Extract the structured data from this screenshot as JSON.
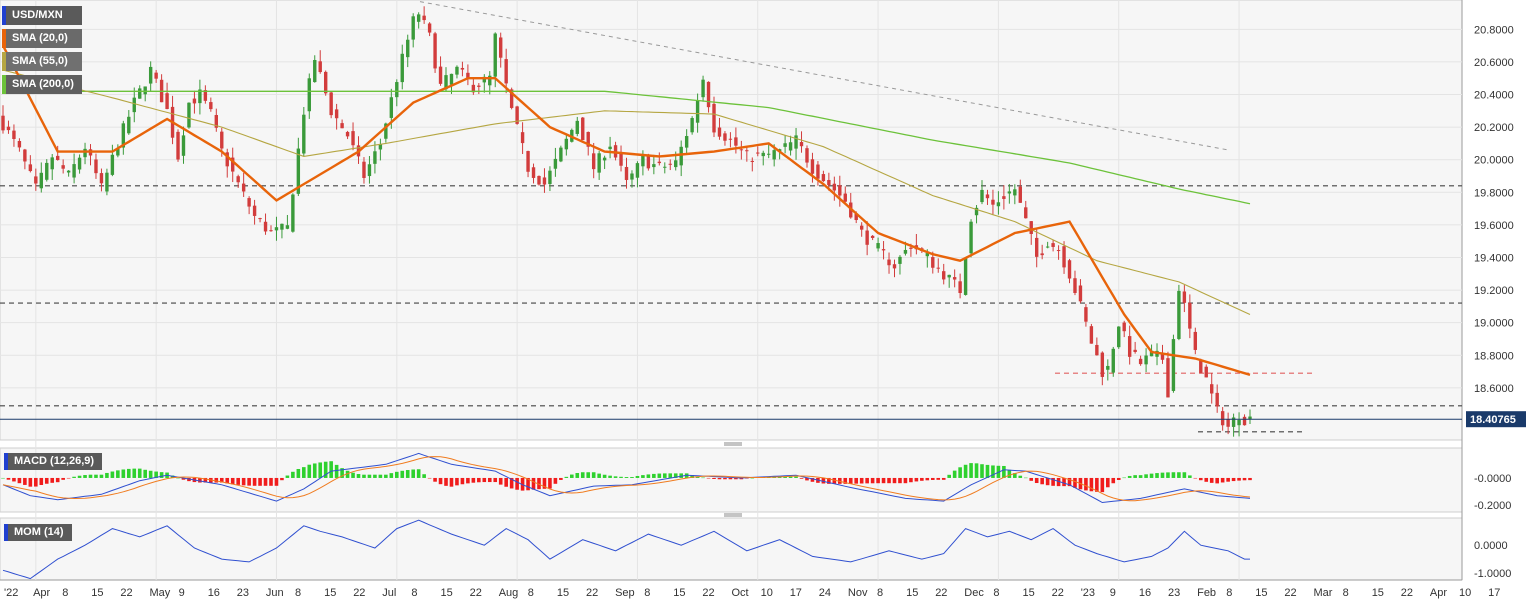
{
  "legend": {
    "symbol": "USD/MXN",
    "indicators": [
      {
        "label": "SMA (20,0)",
        "color": "#e8640a"
      },
      {
        "label": "SMA (55,0)",
        "color": "#b5a642"
      },
      {
        "label": "SMA (200,0)",
        "color": "#6cc23a"
      }
    ]
  },
  "colors": {
    "bull": "#3a9a3a",
    "bear": "#d23c3c",
    "macd": "#3050d0",
    "signal": "#f07c20",
    "mom": "#3050d0",
    "last_price_bg": "#1a3a6a"
  },
  "chart_data": [
    {
      "type": "candlestick",
      "title": "USD/MXN",
      "last_price": "18.40765",
      "ylim": [
        18.28,
        20.98
      ],
      "y_ticks": [
        "20.8000",
        "20.6000",
        "20.4000",
        "20.2000",
        "20.0000",
        "19.8000",
        "19.6000",
        "19.4000",
        "19.2000",
        "19.0000",
        "18.8000",
        "18.6000"
      ],
      "x_ticks": [
        "'22",
        "Apr",
        "8",
        "15",
        "22",
        "May",
        "9",
        "16",
        "23",
        "Jun",
        "8",
        "15",
        "22",
        "Jul",
        "8",
        "15",
        "22",
        "Aug",
        "8",
        "15",
        "22",
        "Sep",
        "8",
        "15",
        "22",
        "Oct",
        "10",
        "17",
        "24",
        "Nov",
        "8",
        "15",
        "22",
        "Dec",
        "8",
        "15",
        "22",
        "'23",
        "9",
        "16",
        "23",
        "Feb",
        "8",
        "15",
        "22",
        "Mar",
        "8",
        "15",
        "22",
        "Apr",
        "10",
        "17"
      ],
      "horizontal_levels": [
        19.84,
        19.12,
        18.49,
        18.69,
        18.33
      ],
      "trendline": [
        [
          20.97
        ],
        [
          20.06
        ]
      ],
      "waypoints": [
        [
          0,
          20.22
        ],
        [
          3,
          20.05
        ],
        [
          6,
          19.82
        ],
        [
          9,
          20.02
        ],
        [
          12,
          19.9
        ],
        [
          15,
          20.08
        ],
        [
          18,
          19.82
        ],
        [
          21,
          20.1
        ],
        [
          24,
          20.35
        ],
        [
          27,
          20.55
        ],
        [
          30,
          20.3
        ],
        [
          32,
          20.02
        ],
        [
          34,
          20.35
        ],
        [
          36,
          20.4
        ],
        [
          38,
          20.28
        ],
        [
          40,
          20.05
        ],
        [
          43,
          19.85
        ],
        [
          46,
          19.65
        ],
        [
          49,
          19.55
        ],
        [
          52,
          19.58
        ],
        [
          55,
          20.3
        ],
        [
          57,
          20.62
        ],
        [
          60,
          20.3
        ],
        [
          63,
          20.15
        ],
        [
          66,
          19.9
        ],
        [
          69,
          20.1
        ],
        [
          72,
          20.5
        ],
        [
          75,
          20.85
        ],
        [
          76,
          20.9
        ],
        [
          78,
          20.75
        ],
        [
          80,
          20.45
        ],
        [
          83,
          20.55
        ],
        [
          86,
          20.45
        ],
        [
          89,
          20.5
        ],
        [
          90,
          20.75
        ],
        [
          93,
          20.3
        ],
        [
          96,
          19.95
        ],
        [
          99,
          19.85
        ],
        [
          102,
          20.05
        ],
        [
          105,
          20.25
        ],
        [
          108,
          19.95
        ],
        [
          111,
          20.1
        ],
        [
          114,
          19.85
        ],
        [
          117,
          20.0
        ],
        [
          120,
          19.95
        ],
        [
          123,
          19.98
        ],
        [
          126,
          20.25
        ],
        [
          128,
          20.5
        ],
        [
          130,
          20.2
        ],
        [
          133,
          20.12
        ],
        [
          136,
          20.02
        ],
        [
          139,
          20.02
        ],
        [
          142,
          20.05
        ],
        [
          145,
          20.12
        ],
        [
          148,
          19.95
        ],
        [
          151,
          19.85
        ],
        [
          154,
          19.75
        ],
        [
          157,
          19.55
        ],
        [
          160,
          19.45
        ],
        [
          163,
          19.35
        ],
        [
          166,
          19.48
        ],
        [
          169,
          19.4
        ],
        [
          172,
          19.3
        ],
        [
          175,
          19.2
        ],
        [
          177,
          19.65
        ],
        [
          179,
          19.8
        ],
        [
          181,
          19.72
        ],
        [
          183,
          19.78
        ],
        [
          185,
          19.82
        ],
        [
          187,
          19.62
        ],
        [
          189,
          19.4
        ],
        [
          191,
          19.5
        ],
        [
          193,
          19.45
        ],
        [
          195,
          19.3
        ],
        [
          197,
          19.1
        ],
        [
          199,
          18.88
        ],
        [
          201,
          18.7
        ],
        [
          202,
          18.72
        ],
        [
          204,
          19.0
        ],
        [
          206,
          18.82
        ],
        [
          208,
          18.75
        ],
        [
          210,
          18.8
        ],
        [
          212,
          18.78
        ],
        [
          213,
          18.58
        ],
        [
          215,
          19.22
        ],
        [
          216,
          19.1
        ],
        [
          218,
          18.8
        ],
        [
          220,
          18.65
        ],
        [
          222,
          18.45
        ],
        [
          224,
          18.36
        ],
        [
          226,
          18.44
        ],
        [
          227,
          18.41
        ]
      ],
      "sma20_waypoints": [
        [
          0,
          20.7
        ],
        [
          10,
          20.05
        ],
        [
          20,
          20.05
        ],
        [
          30,
          20.25
        ],
        [
          40,
          20.05
        ],
        [
          50,
          19.75
        ],
        [
          55,
          19.85
        ],
        [
          65,
          20.05
        ],
        [
          75,
          20.35
        ],
        [
          85,
          20.5
        ],
        [
          90,
          20.5
        ],
        [
          100,
          20.2
        ],
        [
          110,
          20.05
        ],
        [
          120,
          20.02
        ],
        [
          130,
          20.05
        ],
        [
          140,
          20.1
        ],
        [
          150,
          19.85
        ],
        [
          160,
          19.55
        ],
        [
          170,
          19.42
        ],
        [
          175,
          19.38
        ],
        [
          185,
          19.55
        ],
        [
          195,
          19.62
        ],
        [
          205,
          19.05
        ],
        [
          210,
          18.82
        ],
        [
          218,
          18.78
        ],
        [
          228,
          18.68
        ]
      ],
      "sma55_waypoints": [
        [
          0,
          20.55
        ],
        [
          20,
          20.38
        ],
        [
          40,
          20.2
        ],
        [
          55,
          20.02
        ],
        [
          70,
          20.1
        ],
        [
          90,
          20.22
        ],
        [
          110,
          20.3
        ],
        [
          130,
          20.28
        ],
        [
          150,
          20.08
        ],
        [
          170,
          19.78
        ],
        [
          185,
          19.62
        ],
        [
          200,
          19.38
        ],
        [
          215,
          19.25
        ],
        [
          228,
          19.05
        ]
      ],
      "sma200_waypoints": [
        [
          0,
          20.42
        ],
        [
          40,
          20.42
        ],
        [
          80,
          20.42
        ],
        [
          110,
          20.42
        ],
        [
          140,
          20.32
        ],
        [
          170,
          20.12
        ],
        [
          195,
          19.98
        ],
        [
          215,
          19.82
        ],
        [
          228,
          19.73
        ]
      ]
    },
    {
      "type": "bar_line",
      "title": "MACD (12,26,9)",
      "y_ticks": [
        "-0.0000",
        "-0.2000"
      ],
      "ylim": [
        -0.25,
        0.22
      ],
      "macd_waypoints": [
        [
          0,
          -0.05
        ],
        [
          5,
          -0.13
        ],
        [
          10,
          -0.16
        ],
        [
          18,
          -0.12
        ],
        [
          25,
          -0.02
        ],
        [
          30,
          0.02
        ],
        [
          40,
          -0.05
        ],
        [
          50,
          -0.17
        ],
        [
          55,
          -0.08
        ],
        [
          60,
          0.05
        ],
        [
          70,
          0.1
        ],
        [
          76,
          0.18
        ],
        [
          82,
          0.1
        ],
        [
          90,
          0.05
        ],
        [
          95,
          -0.05
        ],
        [
          100,
          -0.13
        ],
        [
          108,
          -0.06
        ],
        [
          115,
          -0.05
        ],
        [
          125,
          0.02
        ],
        [
          135,
          0.0
        ],
        [
          145,
          0.02
        ],
        [
          155,
          -0.07
        ],
        [
          165,
          -0.15
        ],
        [
          172,
          -0.17
        ],
        [
          177,
          -0.05
        ],
        [
          183,
          0.06
        ],
        [
          187,
          0.05
        ],
        [
          195,
          -0.05
        ],
        [
          201,
          -0.18
        ],
        [
          208,
          -0.15
        ],
        [
          216,
          -0.08
        ],
        [
          222,
          -0.13
        ],
        [
          228,
          -0.15
        ]
      ],
      "signal_lag": 6
    },
    {
      "type": "line",
      "title": "MOM (14)",
      "y_ticks": [
        "0.0000",
        "-1.0000"
      ],
      "ylim": [
        -1.25,
        0.98
      ],
      "mom_waypoints": [
        [
          0,
          -0.9
        ],
        [
          5,
          -1.2
        ],
        [
          10,
          -0.5
        ],
        [
          15,
          0.0
        ],
        [
          20,
          0.6
        ],
        [
          25,
          0.3
        ],
        [
          30,
          0.7
        ],
        [
          35,
          -0.1
        ],
        [
          40,
          -0.5
        ],
        [
          45,
          -0.6
        ],
        [
          50,
          -0.1
        ],
        [
          55,
          0.7
        ],
        [
          58,
          0.5
        ],
        [
          62,
          0.3
        ],
        [
          68,
          -0.1
        ],
        [
          72,
          0.6
        ],
        [
          76,
          0.9
        ],
        [
          82,
          0.4
        ],
        [
          88,
          0.0
        ],
        [
          92,
          0.6
        ],
        [
          96,
          0.2
        ],
        [
          100,
          -0.5
        ],
        [
          106,
          0.2
        ],
        [
          112,
          -0.2
        ],
        [
          118,
          0.4
        ],
        [
          124,
          0.0
        ],
        [
          130,
          0.5
        ],
        [
          136,
          -0.2
        ],
        [
          142,
          0.2
        ],
        [
          148,
          -0.4
        ],
        [
          155,
          -0.6
        ],
        [
          162,
          -0.2
        ],
        [
          168,
          -0.5
        ],
        [
          172,
          -0.3
        ],
        [
          176,
          0.6
        ],
        [
          180,
          0.3
        ],
        [
          184,
          0.5
        ],
        [
          188,
          0.2
        ],
        [
          192,
          0.6
        ],
        [
          196,
          0.0
        ],
        [
          200,
          -0.3
        ],
        [
          205,
          -0.6
        ],
        [
          210,
          -0.4
        ],
        [
          213,
          -0.1
        ],
        [
          216,
          0.5
        ],
        [
          219,
          0.0
        ],
        [
          224,
          -0.2
        ],
        [
          227,
          -0.5
        ]
      ]
    }
  ]
}
